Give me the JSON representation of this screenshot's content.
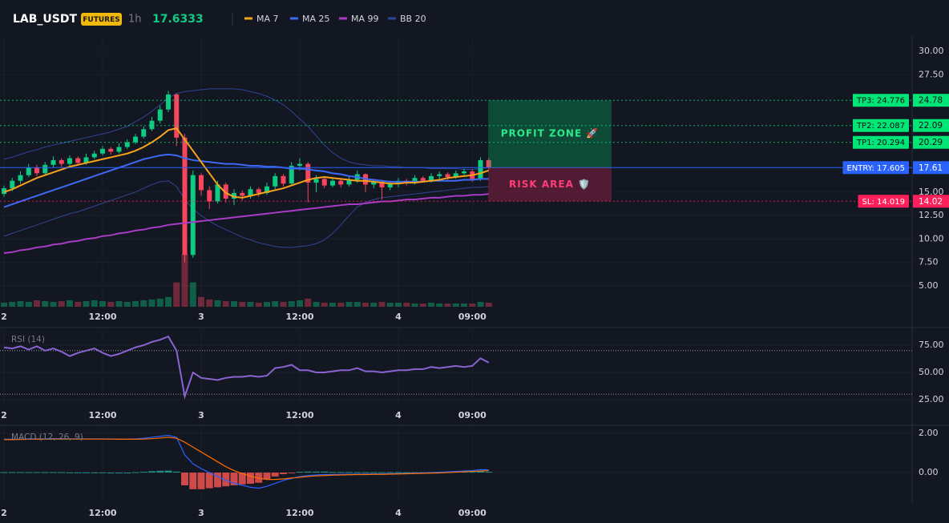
{
  "header": {
    "symbol": "LAB_USDT",
    "badge": "FUTURES",
    "interval": "1h",
    "price": 17.6333
  },
  "chart_data": [
    {
      "type": "candlestick",
      "categories": [
        "2",
        null,
        null,
        null,
        null,
        null,
        null,
        null,
        null,
        null,
        null,
        null,
        "12:00",
        null,
        null,
        null,
        null,
        null,
        null,
        null,
        null,
        null,
        null,
        null,
        "3",
        null,
        null,
        null,
        null,
        null,
        null,
        null,
        null,
        null,
        null,
        null,
        "12:00",
        null,
        null,
        null,
        null,
        null,
        null,
        null,
        null,
        null,
        null,
        null,
        "4",
        null,
        null,
        null,
        null,
        null,
        null,
        null,
        null,
        "09:00",
        null,
        null
      ],
      "open": [
        14.8,
        15.4,
        16.2,
        16.8,
        17.6,
        17.0,
        17.9,
        18.4,
        18.0,
        18.6,
        18.1,
        18.7,
        19.1,
        19.6,
        19.3,
        19.8,
        20.3,
        20.9,
        21.7,
        22.6,
        23.8,
        25.4,
        20.8,
        8.3,
        16.8,
        15.2,
        14.0,
        15.8,
        14.3,
        14.9,
        14.6,
        15.3,
        14.9,
        15.6,
        16.7,
        15.9,
        17.8,
        18.0,
        16.0,
        16.4,
        15.7,
        16.2,
        15.8,
        16.3,
        16.9,
        15.8,
        16.1,
        15.5,
        15.9,
        16.2,
        16.0,
        16.5,
        16.2,
        16.7,
        16.9,
        16.6,
        17.0,
        17.2,
        16.4,
        18.4
      ],
      "high": [
        15.7,
        16.5,
        17.2,
        18.0,
        17.9,
        18.2,
        18.8,
        18.6,
        18.9,
        18.8,
        19.1,
        19.4,
        19.9,
        19.8,
        20.2,
        20.6,
        21.2,
        22.0,
        23.0,
        24.2,
        25.8,
        25.5,
        21.2,
        17.3,
        17.0,
        15.6,
        16.2,
        16.0,
        15.3,
        15.2,
        15.6,
        15.5,
        16.0,
        17.0,
        16.9,
        18.2,
        18.6,
        18.2,
        16.8,
        16.6,
        16.5,
        16.4,
        16.6,
        17.3,
        17.0,
        16.4,
        16.3,
        16.2,
        16.5,
        16.4,
        16.8,
        16.7,
        17.0,
        17.2,
        17.1,
        17.3,
        17.5,
        17.4,
        18.7,
        18.6
      ],
      "low": [
        14.5,
        15.1,
        15.9,
        16.6,
        16.7,
        16.8,
        17.6,
        17.7,
        17.8,
        17.9,
        17.9,
        18.5,
        18.9,
        19.0,
        19.1,
        19.6,
        20.1,
        20.7,
        21.5,
        22.3,
        23.5,
        19.9,
        7.5,
        8.0,
        14.6,
        13.2,
        13.8,
        13.9,
        13.6,
        14.1,
        14.3,
        14.5,
        14.7,
        15.3,
        15.6,
        15.7,
        17.3,
        13.9,
        15.0,
        15.4,
        15.5,
        15.5,
        15.6,
        16.0,
        15.0,
        15.4,
        14.2,
        15.2,
        15.5,
        15.7,
        15.8,
        16.0,
        16.0,
        16.4,
        16.3,
        16.4,
        16.8,
        16.1,
        16.2,
        17.4
      ],
      "close": [
        15.4,
        16.2,
        16.8,
        17.6,
        17.0,
        17.9,
        18.4,
        18.0,
        18.6,
        18.1,
        18.7,
        19.1,
        19.6,
        19.3,
        19.8,
        20.3,
        20.9,
        21.7,
        22.6,
        23.8,
        25.4,
        20.8,
        8.3,
        16.8,
        15.2,
        14.0,
        15.8,
        14.3,
        14.9,
        14.6,
        15.3,
        14.9,
        15.6,
        16.7,
        15.9,
        17.8,
        18.0,
        16.0,
        16.4,
        15.7,
        16.2,
        15.8,
        16.3,
        16.9,
        15.8,
        16.1,
        15.5,
        15.9,
        16.2,
        16.0,
        16.5,
        16.2,
        16.7,
        16.9,
        16.6,
        17.0,
        17.2,
        16.4,
        18.4,
        17.6333
      ],
      "volume": [
        5,
        6,
        7,
        6,
        8,
        7,
        6,
        7,
        8,
        6,
        7,
        8,
        7,
        6,
        7,
        6,
        7,
        8,
        9,
        10,
        12,
        30,
        65,
        30,
        12,
        9,
        8,
        7,
        7,
        6,
        6,
        5,
        6,
        7,
        6,
        7,
        8,
        10,
        6,
        5,
        5,
        5,
        6,
        6,
        5,
        5,
        6,
        5,
        5,
        5,
        4,
        4,
        5,
        4,
        4,
        4,
        4,
        4,
        6,
        5
      ],
      "vlim": [
        0,
        100
      ],
      "up_color": "#0ecb81",
      "down_color": "#f6465d",
      "lines": [
        {
          "name": "MA 7",
          "color": "#f7a21b",
          "values": [
            15.0,
            15.3,
            15.7,
            16.1,
            16.5,
            16.8,
            17.1,
            17.4,
            17.7,
            17.9,
            18.1,
            18.3,
            18.5,
            18.7,
            18.9,
            19.1,
            19.4,
            19.8,
            20.3,
            20.9,
            21.6,
            21.8,
            20.6,
            19.4,
            18.2,
            17.0,
            15.8,
            14.9,
            14.5,
            14.4,
            14.6,
            14.8,
            15.0,
            15.2,
            15.4,
            15.7,
            16.0,
            16.3,
            16.5,
            16.6,
            16.5,
            16.4,
            16.3,
            16.2,
            16.2,
            16.1,
            16.0,
            15.9,
            15.9,
            16.0,
            16.0,
            16.1,
            16.2,
            16.3,
            16.5,
            16.6,
            16.7,
            16.8,
            17.0,
            17.3
          ]
        },
        {
          "name": "MA 25",
          "color": "#3d6af5",
          "values": [
            13.4,
            13.7,
            14.0,
            14.3,
            14.6,
            14.9,
            15.2,
            15.5,
            15.8,
            16.1,
            16.4,
            16.7,
            17.0,
            17.3,
            17.6,
            17.9,
            18.2,
            18.5,
            18.7,
            18.9,
            19.0,
            18.9,
            18.6,
            18.4,
            18.3,
            18.2,
            18.1,
            18.0,
            18.0,
            17.9,
            17.8,
            17.8,
            17.7,
            17.7,
            17.6,
            17.5,
            17.5,
            17.4,
            17.3,
            17.2,
            17.0,
            16.9,
            16.7,
            16.6,
            16.4,
            16.3,
            16.2,
            16.1,
            16.1,
            16.1,
            16.1,
            16.1,
            16.2,
            16.2,
            16.2,
            16.2,
            16.3,
            16.3,
            16.4,
            16.4
          ]
        },
        {
          "name": "MA 99",
          "color": "#a83cc4",
          "values": [
            8.5,
            8.6,
            8.8,
            8.9,
            9.1,
            9.2,
            9.4,
            9.5,
            9.7,
            9.8,
            10.0,
            10.1,
            10.3,
            10.4,
            10.6,
            10.7,
            10.9,
            11.0,
            11.2,
            11.3,
            11.5,
            11.6,
            11.7,
            11.8,
            11.9,
            12.0,
            12.1,
            12.2,
            12.3,
            12.4,
            12.5,
            12.6,
            12.7,
            12.8,
            12.9,
            13.0,
            13.1,
            13.2,
            13.3,
            13.4,
            13.5,
            13.6,
            13.7,
            13.7,
            13.8,
            13.9,
            14.0,
            14.0,
            14.1,
            14.2,
            14.2,
            14.3,
            14.4,
            14.4,
            14.5,
            14.6,
            14.6,
            14.7,
            14.7,
            14.8
          ]
        }
      ],
      "bb": {
        "name": "BB 20",
        "color": "#2f4596",
        "upper": [
          18.5,
          18.7,
          19.0,
          19.3,
          19.5,
          19.8,
          20.0,
          20.2,
          20.4,
          20.6,
          20.8,
          21.0,
          21.2,
          21.4,
          21.7,
          22.0,
          22.5,
          23.0,
          23.6,
          24.3,
          25.0,
          25.5,
          25.7,
          25.8,
          25.9,
          26.0,
          26.0,
          26.0,
          26.0,
          25.9,
          25.7,
          25.5,
          25.2,
          24.8,
          24.3,
          23.6,
          22.8,
          22.0,
          21.0,
          20.0,
          19.2,
          18.6,
          18.2,
          18.0,
          17.9,
          17.8,
          17.8,
          17.7,
          17.7,
          17.6,
          17.6,
          17.6,
          17.5,
          17.5,
          17.5,
          17.5,
          17.4,
          17.4,
          17.5,
          17.6
        ],
        "lower": [
          10.3,
          10.6,
          10.9,
          11.2,
          11.5,
          11.8,
          12.1,
          12.4,
          12.7,
          12.9,
          13.2,
          13.5,
          13.8,
          14.1,
          14.4,
          14.7,
          15.0,
          15.4,
          15.8,
          16.1,
          16.2,
          15.6,
          14.2,
          13.2,
          12.5,
          11.9,
          11.4,
          11.0,
          10.6,
          10.2,
          9.9,
          9.6,
          9.4,
          9.2,
          9.1,
          9.1,
          9.2,
          9.3,
          9.5,
          9.9,
          10.6,
          11.5,
          12.5,
          13.4,
          13.9,
          14.2,
          14.4,
          14.5,
          14.6,
          14.7,
          14.8,
          14.9,
          15.0,
          15.1,
          15.2,
          15.3,
          15.4,
          15.5,
          15.5,
          15.6
        ]
      },
      "ylim": [
        2.78,
        31.62
      ],
      "yticks": [
        {
          "value": 30,
          "label": "30.00"
        },
        {
          "value": 27.5,
          "label": "27.50"
        },
        {
          "value": 15,
          "label": "15.00"
        },
        {
          "value": 12.5,
          "label": "12.50"
        },
        {
          "value": 10,
          "label": "10.00"
        },
        {
          "value": 7.5,
          "label": "7.50"
        },
        {
          "value": 5,
          "label": "5.00"
        }
      ],
      "levels": [
        {
          "label": "TP3: 24.776",
          "value": 24.776,
          "tag": "24.78",
          "color": "#00e676",
          "text_color": "#0b0e14",
          "dash": true
        },
        {
          "label": "TP2: 22.087",
          "value": 22.087,
          "tag": "22.09",
          "color": "#00e676",
          "text_color": "#0b0e14",
          "dash": true
        },
        {
          "label": "TP1: 20.294",
          "value": 20.294,
          "tag": "20.29",
          "color": "#00e676",
          "text_color": "#0b0e14",
          "dash": true
        },
        {
          "label": "ENTRY: 17.605",
          "value": 17.605,
          "tag": "17.61",
          "color": "#2962ff",
          "text_color": "#ffffff",
          "dash": false
        },
        {
          "label": "SL: 14.019",
          "value": 14.019,
          "tag": "14.02",
          "color": "#ff1f5a",
          "text_color": "#ffffff",
          "dash": true
        }
      ],
      "zones": [
        {
          "label": "PROFIT ZONE 🚀",
          "top": 24.776,
          "bottom": 17.605,
          "color": "#00c46a",
          "text_color": "#2ee88a"
        },
        {
          "label": "RISK AREA 🛡️",
          "top": 17.605,
          "bottom": 14.019,
          "color": "#e0245e",
          "text_color": "#ff3d78"
        }
      ]
    },
    {
      "type": "line",
      "title": "RSI (14)",
      "color": "#8a63d2",
      "values": [
        73,
        72,
        74,
        71,
        74,
        70,
        72,
        69,
        65,
        68,
        70,
        72,
        68,
        65,
        67,
        70,
        73,
        75,
        78,
        80,
        83,
        70,
        28,
        50,
        45,
        44,
        43,
        45,
        46,
        46,
        47,
        46,
        47,
        54,
        55,
        57,
        52,
        52,
        50,
        50,
        51,
        52,
        52,
        54,
        51,
        51,
        50,
        51,
        52,
        52,
        53,
        53,
        55,
        54,
        55,
        56,
        55,
        56,
        63,
        59
      ],
      "levels": [
        70,
        30
      ],
      "ylim": [
        20.6,
        89.7
      ],
      "yticks": [
        {
          "value": 75,
          "label": "75.00"
        },
        {
          "value": 50,
          "label": "50.00"
        },
        {
          "value": 25,
          "label": "25.00"
        }
      ]
    },
    {
      "type": "macd",
      "title": "MACD (12, 26, 9)",
      "macd": {
        "color": "#2962ff",
        "values": [
          1.7,
          1.7,
          1.71,
          1.72,
          1.72,
          1.72,
          1.73,
          1.73,
          1.72,
          1.72,
          1.72,
          1.72,
          1.72,
          1.71,
          1.7,
          1.7,
          1.72,
          1.75,
          1.8,
          1.85,
          1.9,
          1.8,
          0.9,
          0.45,
          0.2,
          0.0,
          -0.2,
          -0.4,
          -0.55,
          -0.65,
          -0.75,
          -0.8,
          -0.7,
          -0.55,
          -0.4,
          -0.3,
          -0.2,
          -0.15,
          -0.12,
          -0.1,
          -0.1,
          -0.09,
          -0.08,
          -0.08,
          -0.08,
          -0.07,
          -0.07,
          -0.06,
          -0.05,
          -0.04,
          -0.03,
          -0.02,
          0.0,
          0.02,
          0.04,
          0.06,
          0.08,
          0.1,
          0.15,
          0.14
        ]
      },
      "signal": {
        "color": "#ff6d00",
        "values": [
          1.68,
          1.68,
          1.69,
          1.7,
          1.7,
          1.7,
          1.71,
          1.71,
          1.71,
          1.71,
          1.71,
          1.71,
          1.71,
          1.71,
          1.7,
          1.7,
          1.7,
          1.71,
          1.73,
          1.76,
          1.8,
          1.75,
          1.55,
          1.3,
          1.05,
          0.8,
          0.55,
          0.3,
          0.1,
          -0.05,
          -0.18,
          -0.28,
          -0.35,
          -0.35,
          -0.32,
          -0.28,
          -0.24,
          -0.2,
          -0.17,
          -0.15,
          -0.13,
          -0.12,
          -0.11,
          -0.1,
          -0.1,
          -0.09,
          -0.09,
          -0.08,
          -0.07,
          -0.06,
          -0.05,
          -0.04,
          -0.03,
          -0.02,
          0.0,
          0.02,
          0.04,
          0.06,
          0.08,
          0.1
        ]
      },
      "histogram": {
        "up_color": "#26a69a",
        "down_color": "#ef5350",
        "values": [
          0.02,
          0.02,
          0.02,
          0.02,
          0.02,
          0.02,
          0.02,
          0.02,
          0.01,
          0.01,
          0.01,
          0.01,
          0.01,
          0.0,
          0.0,
          0.0,
          0.02,
          0.04,
          0.07,
          0.09,
          0.1,
          0.05,
          -0.65,
          -0.85,
          -0.85,
          -0.8,
          -0.75,
          -0.7,
          -0.65,
          -0.6,
          -0.57,
          -0.52,
          -0.35,
          -0.2,
          -0.08,
          -0.02,
          0.04,
          0.05,
          0.05,
          0.05,
          0.03,
          0.03,
          0.03,
          0.02,
          0.02,
          0.02,
          0.02,
          0.02,
          0.02,
          0.02,
          0.02,
          0.02,
          0.03,
          0.04,
          0.04,
          0.04,
          0.04,
          0.04,
          0.07,
          0.04
        ]
      },
      "ylim": [
        -1.55,
        2.37
      ],
      "yticks": [
        {
          "value": 2,
          "label": "2.00"
        },
        {
          "value": 0,
          "label": "0.00"
        }
      ]
    }
  ]
}
